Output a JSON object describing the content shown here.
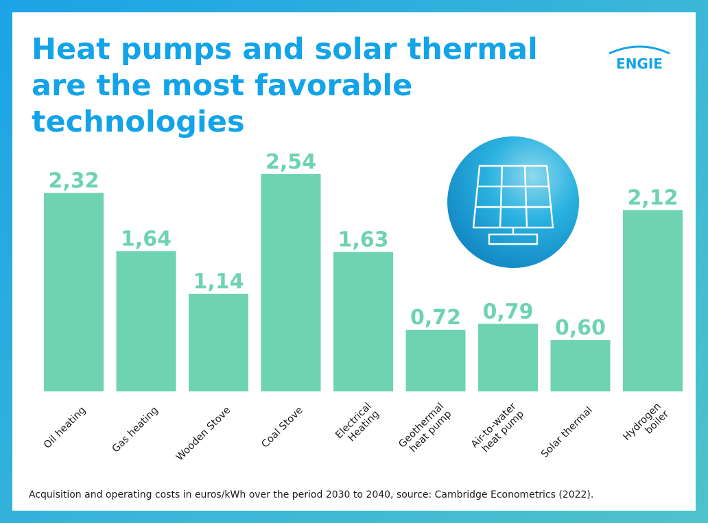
{
  "title": "Heat pumps and solar thermal are the most favorable technologies",
  "logo_text": "ENGIE",
  "source": "Acquisition and operating costs in euros/kWh over the period 2030 to 2040, source: Cambridge Econometrics (2022).",
  "icon": "solar-panel-icon",
  "colors": {
    "title": "#13a3e8",
    "bar": "#6dd3b0",
    "background_gradient": [
      "#1ba3e6",
      "#4dc3c9"
    ]
  },
  "chart_data": {
    "type": "bar",
    "categories": [
      "Oil heating",
      "Gas heating",
      "Wooden Stove",
      "Coal Stove",
      "Electrical\nHeating",
      "Geothermal\nheat pump",
      "Air-to-water\nheat pump",
      "Solar thermal",
      "Hydrogen\nboiler"
    ],
    "values": [
      2.32,
      1.64,
      1.14,
      2.54,
      1.63,
      0.72,
      0.79,
      0.6,
      2.12
    ],
    "data_labels": [
      "2,32",
      "1,64",
      "1,14",
      "2,54",
      "1,63",
      "0,72",
      "0,79",
      "0,60",
      "2,12"
    ],
    "ylim": [
      0,
      2.54
    ],
    "grid": false,
    "legend": false
  }
}
